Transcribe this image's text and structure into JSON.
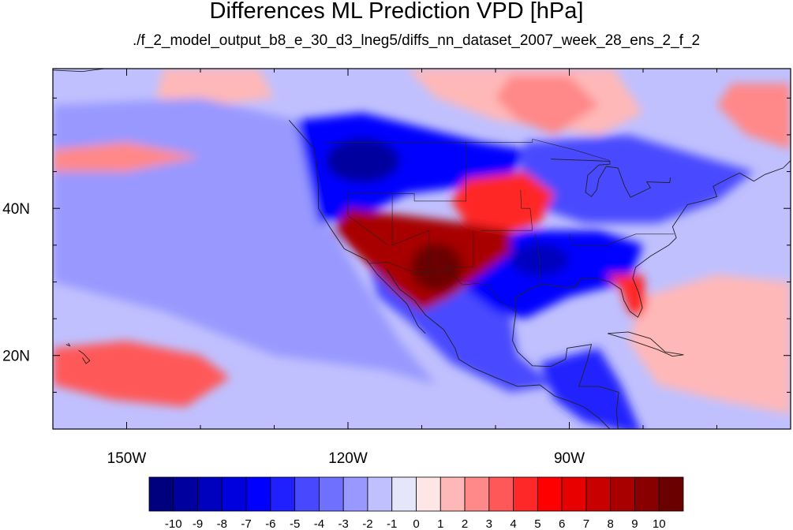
{
  "title": "Differences ML Prediction VPD [hPa]",
  "subtitle": "./f_2_model_output_b8_e_30_d3_lneg5/diffs_nn_dataset_2007_week_28_ens_2_f_2",
  "chart_data": {
    "type": "heatmap",
    "projection": "cylindrical equidistant",
    "lon_range": [
      -160,
      -60
    ],
    "lat_range": [
      10,
      59
    ],
    "grid": false,
    "coastlines": true,
    "state_borders": true,
    "x_ticks": [
      {
        "value": -150,
        "label": "150W"
      },
      {
        "value": -120,
        "label": "120W"
      },
      {
        "value": -90,
        "label": "90W"
      }
    ],
    "y_ticks": [
      {
        "value": 20,
        "label": "20N"
      },
      {
        "value": 40,
        "label": "40N"
      }
    ],
    "colorbar": {
      "position": "bottom",
      "labels": [
        "-10",
        "-9",
        "-8",
        "-7",
        "-6",
        "-5",
        "-4",
        "-3",
        "-2",
        "-1",
        "0",
        "1",
        "2",
        "3",
        "4",
        "5",
        "6",
        "7",
        "8",
        "9",
        "10"
      ],
      "colors": [
        "#00007f",
        "#00009f",
        "#0000bf",
        "#0000df",
        "#0000ff",
        "#2020ff",
        "#4848ff",
        "#7070ff",
        "#9898ff",
        "#c0c0ff",
        "#e6e6fa",
        "#ffe6e6",
        "#ffb8b8",
        "#ff8888",
        "#ff5858",
        "#ff2828",
        "#ff0000",
        "#e60000",
        "#c80000",
        "#a80000",
        "#880000",
        "#6a0000"
      ]
    },
    "regions": [
      {
        "name": "background",
        "value": -1
      },
      {
        "name": "pacific-blue-band",
        "value": -2
      },
      {
        "name": "pacific-pink-patch",
        "value": 2
      },
      {
        "name": "north-pacific-pink",
        "value": 1
      },
      {
        "name": "pacific-northwest",
        "value": -6
      },
      {
        "name": "great-plains-north",
        "value": 4
      },
      {
        "name": "southwest-us-hotspot",
        "value": 8
      },
      {
        "name": "texas-gulf-coast",
        "value": -6
      },
      {
        "name": "florida",
        "value": 4
      },
      {
        "name": "hudson-bay-pink",
        "value": 2
      },
      {
        "name": "great-lakes-northeast",
        "value": -4
      },
      {
        "name": "mexico",
        "value": -4
      },
      {
        "name": "central-america",
        "value": -5
      },
      {
        "name": "caribbean-atlantic",
        "value": 1
      },
      {
        "name": "hawaii-subtropics",
        "value": 3
      }
    ]
  }
}
